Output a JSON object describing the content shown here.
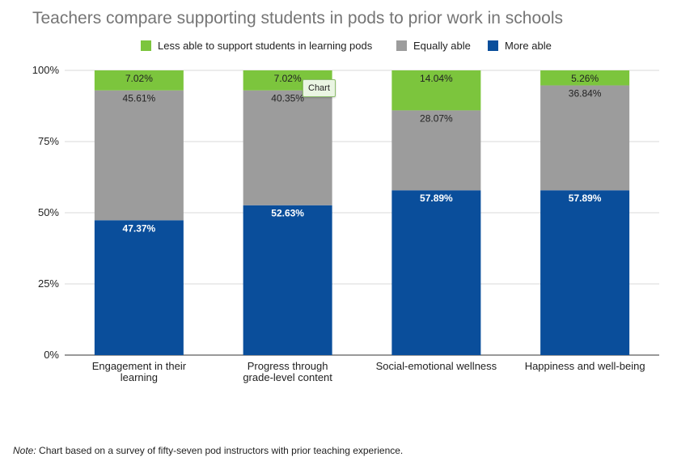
{
  "chart_data": {
    "type": "bar",
    "stacked": true,
    "title": "Teachers compare supporting students in pods to prior work in schools",
    "xlabel": "",
    "ylabel": "",
    "ylim": [
      0,
      100
    ],
    "yticks": [
      "0%",
      "25%",
      "50%",
      "75%",
      "100%"
    ],
    "ytick_values": [
      0,
      25,
      50,
      75,
      100
    ],
    "legend_position": "top",
    "grid": true,
    "categories": [
      [
        "Engagement in their",
        "learning"
      ],
      [
        "Progress through",
        "grade-level content"
      ],
      [
        "Social-emotional wellness"
      ],
      [
        "Happiness and well-being"
      ]
    ],
    "series": [
      {
        "name": "More able",
        "color": "#0a4e9b",
        "label_color": "#ffffff",
        "values": [
          47.37,
          52.63,
          57.89,
          57.89
        ],
        "labels": [
          "47.37%",
          "52.63%",
          "57.89%",
          "57.89%"
        ]
      },
      {
        "name": "Equally able",
        "color": "#9c9c9c",
        "label_color": "#222222",
        "values": [
          45.61,
          40.35,
          28.07,
          36.84
        ],
        "labels": [
          "45.61%",
          "40.35%",
          "28.07%",
          "36.84%"
        ]
      },
      {
        "name": "Less able to support students in learning pods",
        "color": "#7cc53d",
        "label_color": "#222222",
        "values": [
          7.02,
          7.02,
          14.04,
          5.26
        ],
        "labels": [
          "7.02%",
          "7.02%",
          "14.04%",
          "5.26%"
        ]
      }
    ],
    "legend_order": [
      "Less able to support students in learning pods",
      "Equally able",
      "More able"
    ]
  },
  "tooltip": {
    "text": "Chart"
  },
  "note": {
    "label": "Note:",
    "text": " Chart based on a survey of fifty-seven pod instructors with prior teaching experience."
  }
}
